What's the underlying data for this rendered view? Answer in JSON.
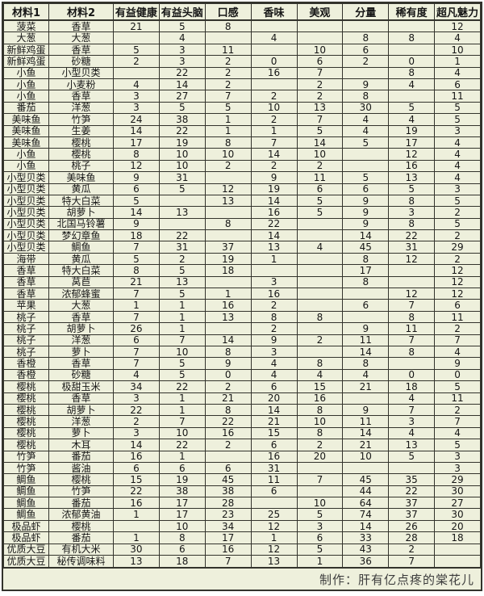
{
  "table": {
    "columns": [
      "材料1",
      "材料2",
      "有益健康",
      "有益头脑",
      "口感",
      "香味",
      "美观",
      "分量",
      "稀有度",
      "超凡魅力"
    ],
    "rows": [
      [
        "菠菜",
        "香草",
        "21",
        "5",
        "8",
        "",
        "",
        "",
        "",
        "12"
      ],
      [
        "大葱",
        "大葱",
        "",
        "4",
        "",
        "4",
        "",
        "8",
        "8",
        "4"
      ],
      [
        "新鲜鸡蛋",
        "香草",
        "5",
        "3",
        "11",
        "",
        "10",
        "6",
        "",
        "10"
      ],
      [
        "新鲜鸡蛋",
        "砂糖",
        "2",
        "3",
        "2",
        "0",
        "6",
        "2",
        "0",
        "1"
      ],
      [
        "小鱼",
        "小型贝类",
        "",
        "22",
        "2",
        "16",
        "7",
        "",
        "8",
        "4"
      ],
      [
        "小鱼",
        "小麦粉",
        "4",
        "14",
        "2",
        "",
        "2",
        "9",
        "4",
        "6"
      ],
      [
        "小鱼",
        "香草",
        "3",
        "27",
        "7",
        "2",
        "2",
        "8",
        "",
        "11"
      ],
      [
        "番茄",
        "洋葱",
        "3",
        "5",
        "5",
        "10",
        "13",
        "30",
        "5",
        "5"
      ],
      [
        "美味鱼",
        "竹笋",
        "24",
        "38",
        "1",
        "2",
        "7",
        "4",
        "4",
        "5"
      ],
      [
        "美味鱼",
        "生姜",
        "14",
        "22",
        "1",
        "1",
        "5",
        "4",
        "19",
        "3"
      ],
      [
        "美味鱼",
        "樱桃",
        "17",
        "19",
        "8",
        "7",
        "14",
        "5",
        "17",
        "4"
      ],
      [
        "小鱼",
        "樱桃",
        "8",
        "10",
        "10",
        "14",
        "10",
        "",
        "12",
        "4"
      ],
      [
        "小鱼",
        "桃子",
        "12",
        "10",
        "2",
        "2",
        "2",
        "",
        "16",
        "4"
      ],
      [
        "小型贝类",
        "美味鱼",
        "9",
        "31",
        "",
        "9",
        "11",
        "5",
        "13",
        "4"
      ],
      [
        "小型贝类",
        "黄瓜",
        "6",
        "5",
        "12",
        "19",
        "6",
        "6",
        "5",
        "3"
      ],
      [
        "小型贝类",
        "特大白菜",
        "5",
        "",
        "13",
        "14",
        "5",
        "9",
        "8",
        "5"
      ],
      [
        "小型贝类",
        "胡萝卜",
        "14",
        "13",
        "",
        "16",
        "5",
        "9",
        "3",
        "2"
      ],
      [
        "小型贝类",
        "北国马铃薯",
        "9",
        "",
        "8",
        "22",
        "",
        "9",
        "8",
        "5"
      ],
      [
        "小型贝类",
        "梦幻章鱼",
        "18",
        "22",
        "",
        "14",
        "",
        "14",
        "22",
        "2"
      ],
      [
        "小型贝类",
        "鲷鱼",
        "7",
        "31",
        "37",
        "13",
        "4",
        "45",
        "31",
        "29"
      ],
      [
        "海带",
        "黄瓜",
        "5",
        "2",
        "19",
        "1",
        "",
        "8",
        "12",
        "2"
      ],
      [
        "香草",
        "特大白菜",
        "8",
        "5",
        "18",
        "",
        "",
        "17",
        "",
        "12"
      ],
      [
        "香草",
        "莴苣",
        "21",
        "13",
        "",
        "3",
        "",
        "8",
        "",
        "12"
      ],
      [
        "香草",
        "浓郁蜂蜜",
        "7",
        "5",
        "1",
        "16",
        "",
        "",
        "12",
        "12"
      ],
      [
        "苹果",
        "大葱",
        "1",
        "1",
        "16",
        "2",
        "",
        "6",
        "7",
        "6"
      ],
      [
        "桃子",
        "香草",
        "7",
        "1",
        "13",
        "8",
        "8",
        "",
        "8",
        "11"
      ],
      [
        "桃子",
        "胡萝卜",
        "26",
        "1",
        "",
        "2",
        "",
        "9",
        "11",
        "2"
      ],
      [
        "桃子",
        "洋葱",
        "6",
        "7",
        "14",
        "9",
        "2",
        "11",
        "7",
        "7"
      ],
      [
        "桃子",
        "萝卜",
        "7",
        "10",
        "8",
        "3",
        "",
        "14",
        "8",
        "4"
      ],
      [
        "香橙",
        "香草",
        "7",
        "5",
        "9",
        "4",
        "8",
        "8",
        "",
        "9"
      ],
      [
        "香橙",
        "砂糖",
        "4",
        "5",
        "0",
        "4",
        "4",
        "4",
        "0",
        "0"
      ],
      [
        "樱桃",
        "极甜玉米",
        "34",
        "22",
        "2",
        "6",
        "15",
        "21",
        "18",
        "5"
      ],
      [
        "樱桃",
        "香草",
        "3",
        "1",
        "21",
        "20",
        "16",
        "",
        "4",
        "11"
      ],
      [
        "樱桃",
        "胡萝卜",
        "22",
        "1",
        "8",
        "14",
        "8",
        "9",
        "7",
        "2"
      ],
      [
        "樱桃",
        "洋葱",
        "2",
        "7",
        "22",
        "21",
        "10",
        "11",
        "3",
        "7"
      ],
      [
        "樱桃",
        "萝卜",
        "3",
        "10",
        "16",
        "15",
        "8",
        "14",
        "4",
        "4"
      ],
      [
        "樱桃",
        "木耳",
        "14",
        "22",
        "2",
        "6",
        "2",
        "21",
        "13",
        "5"
      ],
      [
        "竹笋",
        "番茄",
        "16",
        "1",
        "",
        "16",
        "20",
        "10",
        "5",
        "3"
      ],
      [
        "竹笋",
        "酱油",
        "6",
        "6",
        "6",
        "31",
        "",
        "",
        "",
        "3"
      ],
      [
        "鲷鱼",
        "樱桃",
        "15",
        "19",
        "45",
        "11",
        "7",
        "45",
        "35",
        "29"
      ],
      [
        "鲷鱼",
        "竹笋",
        "22",
        "38",
        "38",
        "6",
        "",
        "44",
        "22",
        "30"
      ],
      [
        "鲷鱼",
        "番茄",
        "16",
        "17",
        "28",
        "",
        "10",
        "64",
        "37",
        "27"
      ],
      [
        "鲷鱼",
        "浓郁黄油",
        "1",
        "17",
        "23",
        "25",
        "5",
        "74",
        "37",
        "30"
      ],
      [
        "极品虾",
        "樱桃",
        "",
        "10",
        "34",
        "12",
        "3",
        "14",
        "26",
        "20"
      ],
      [
        "极品虾",
        "番茄",
        "1",
        "8",
        "17",
        "1",
        "6",
        "33",
        "28",
        "18"
      ],
      [
        "优质大豆",
        "有机大米",
        "30",
        "6",
        "16",
        "12",
        "5",
        "43",
        "2",
        ""
      ],
      [
        "优质大豆",
        "秘传调味料",
        "13",
        "18",
        "7",
        "13",
        "1",
        "36",
        "7",
        ""
      ]
    ]
  },
  "footer": {
    "credit": "制作：肝有亿点疼的棠花儿"
  },
  "colors": {
    "cell_background": "#eef0dc",
    "border": "#33332c",
    "text": "#161616",
    "credit_text": "#3c3c3c"
  }
}
